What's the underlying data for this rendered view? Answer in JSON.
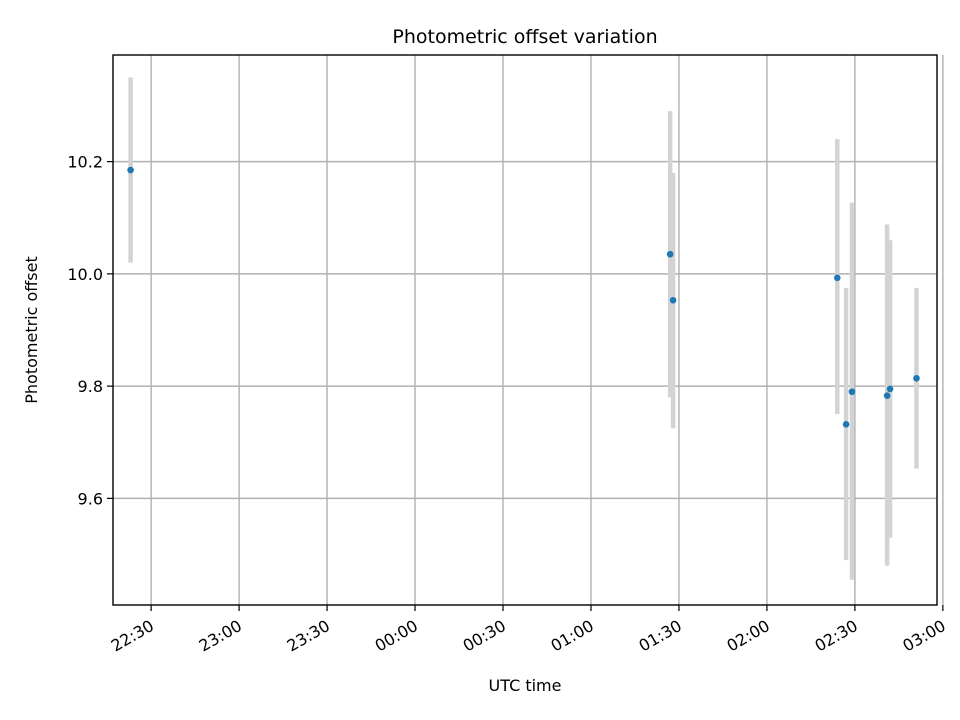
{
  "chart_data": {
    "type": "scatter",
    "title": "Photometric offset variation",
    "xlabel": "UTC time",
    "ylabel": "Photometric offset",
    "x_range": [
      "22:17",
      "02:58"
    ],
    "ylim": [
      9.41,
      10.39
    ],
    "x_ticks": [
      "22:30",
      "23:00",
      "23:30",
      "00:00",
      "00:30",
      "01:00",
      "01:30",
      "02:00",
      "02:30",
      "03:00"
    ],
    "y_ticks": [
      9.6,
      9.8,
      10.0,
      10.2
    ],
    "grid": true,
    "series": [
      {
        "points": [
          {
            "x": "22:23",
            "y": 10.185,
            "lo": 10.02,
            "hi": 10.35
          },
          {
            "x": "01:27",
            "y": 10.035,
            "lo": 9.78,
            "hi": 10.29
          },
          {
            "x": "01:28",
            "y": 9.953,
            "lo": 9.725,
            "hi": 10.18
          },
          {
            "x": "02:24",
            "y": 9.993,
            "lo": 9.75,
            "hi": 10.24
          },
          {
            "x": "02:27",
            "y": 9.732,
            "lo": 9.49,
            "hi": 9.975
          },
          {
            "x": "02:29",
            "y": 9.79,
            "lo": 9.455,
            "hi": 10.127
          },
          {
            "x": "02:41",
            "y": 9.783,
            "lo": 9.48,
            "hi": 10.088
          },
          {
            "x": "02:42",
            "y": 9.795,
            "lo": 9.53,
            "hi": 10.06
          },
          {
            "x": "02:51",
            "y": 9.814,
            "lo": 9.653,
            "hi": 9.975
          }
        ]
      }
    ],
    "colors": {
      "point": "#1f77b4",
      "errorbar": "#d3d3d3",
      "grid": "#b0b0b0"
    }
  }
}
